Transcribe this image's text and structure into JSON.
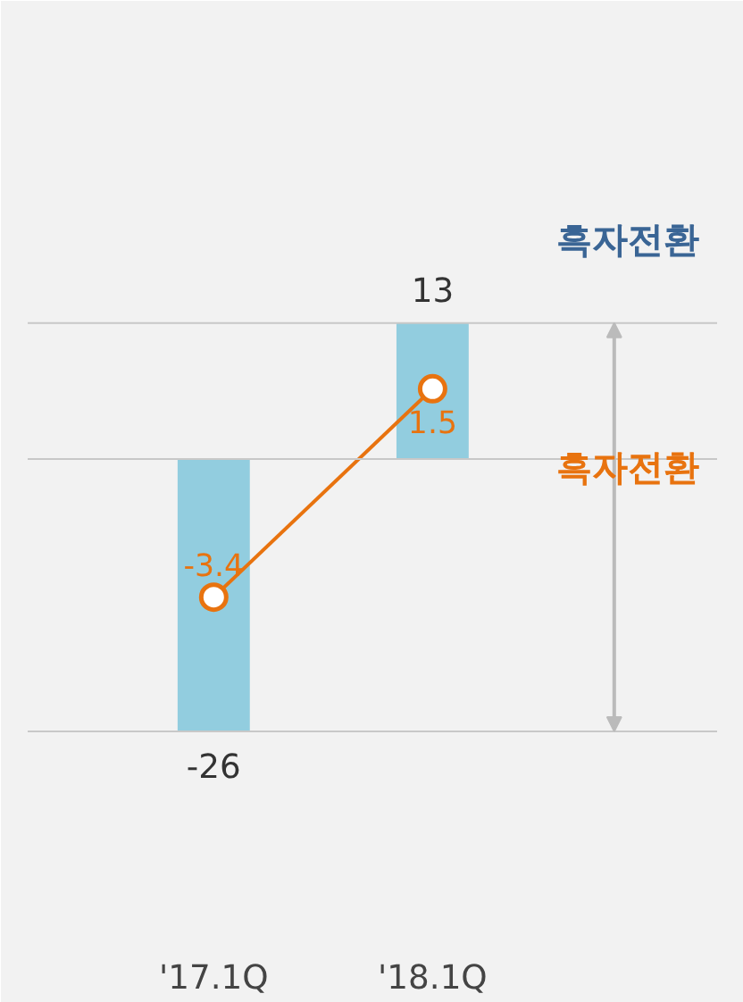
{
  "chart_data": {
    "type": "bar",
    "categories": [
      "'17.1Q",
      "'18.1Q"
    ],
    "series": [
      {
        "color": "#92cddf",
        "values": [
          -26,
          13
        ]
      },
      {
        "type": "line",
        "axis": "y2",
        "color": "#e8730f",
        "values": [
          -3.4,
          1.5
        ]
      }
    ],
    "data_labels": true,
    "marker": "circle",
    "ylim": [
      -40,
      25
    ],
    "y2lim": [
      -10,
      6
    ],
    "tick_labels": "x",
    "grid": false,
    "ref_lines": [
      {
        "axis": "y",
        "value": 0,
        "color": "#c8c8c8"
      },
      {
        "axis": "y",
        "value": 13,
        "color": "#c8c8c8"
      },
      {
        "axis": "y",
        "value": -26,
        "color": "#c8c8c8"
      }
    ],
    "annotations": [
      "흑자전환",
      "흑자전환"
    ]
  }
}
